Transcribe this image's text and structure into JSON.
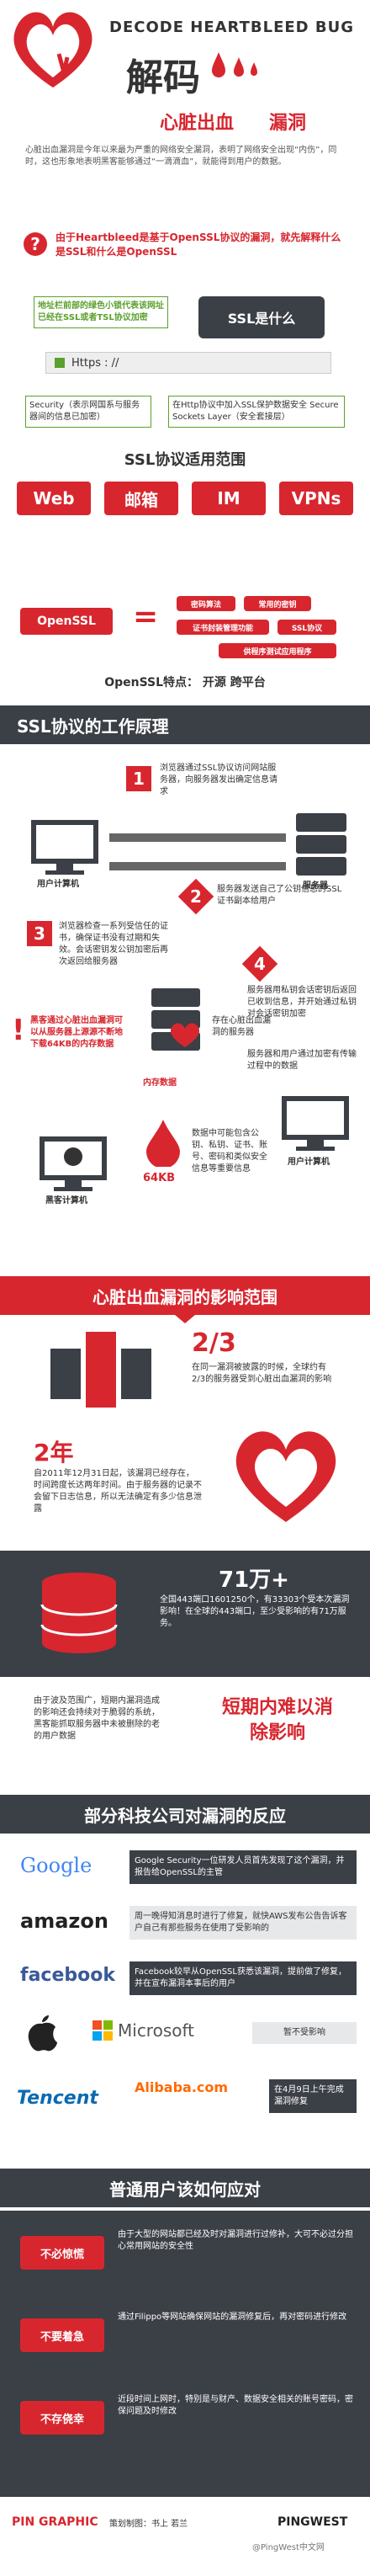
{
  "header": {
    "title_en": "DECODE HEARTBLEED BUG",
    "title_zh": "解码",
    "subtitle_a": "心脏出血",
    "subtitle_b": "漏洞",
    "intro": "心脏出血漏洞是今年以来最为严重的网络安全漏洞，表明了网络安全出现“内伤”，同时，这也形象地表明黑客能够通过“一滴滴血”，就能得到用户的数据。"
  },
  "q1": {
    "text": "由于Heartbleed是基于OpenSSL协议的漏洞，就先解释什么是SSL和什么是OpenSSL",
    "ssl_label": "SSL是什么",
    "browser_note": "地址栏前部的绿色小锁代表该网址已经在SSL或者TSL协议加密",
    "url": "Https : //",
    "security_label": "Security（表示网国系与服务器间的信息已加密）",
    "http_label": "在Http协议中加入SSL保护数据安全 Secure Sockets Layer（安全套接层）"
  },
  "scope": {
    "title": "SSL协议适用范围",
    "items": [
      "Web",
      "邮箱",
      "IM",
      "VPNs"
    ]
  },
  "openssl": {
    "label": "OpenSSL",
    "tags": [
      "密码算法",
      "常用的密钥",
      "证书封装管理功能",
      "SSL协议",
      "供程序测试应用程序"
    ],
    "feature": "OpenSSL特点：  开源    跨平台"
  },
  "work": {
    "title": "SSL协议的工作原理",
    "step1": "浏览器通过SSL协议访问网站服务器，向服务器发出确定信息请求",
    "step2": "服务器发送自己了公钥信息的SSL证书副本给用户",
    "step3": "浏览器检查一系列受信任的证书，确保证书没有过期和失效。会话密钥发公钥加密后再次返回给服务器",
    "step4": "服务器用私钥会话密钥后返回已收到信息，并开始通过私钥对会话密钥加密",
    "step5": "服务器和用户通过加密有传输过程中的数据",
    "user_pc": "用户计算机",
    "server": "服务器",
    "hacker_note": "黑客通过心脏出血漏洞可以从服务器上源源不断地下载64KB的内存数据",
    "bleed_server": "存在心脏出血漏洞的服务器",
    "mem": "内存数据",
    "size": "64KB",
    "leak_note": "数据中可能包含公钥、私钥、证书、账号、密码和类似安全信息等重要信息",
    "hacker_pc": "黑客计算机",
    "user_pc2": "用户计算机"
  },
  "impact": {
    "title": "心脏出血漏洞的影响范围",
    "ratio": "2/3",
    "ratio_text": "在同一漏洞被披露的时候，全球约有2/3的服务器受到心脏出血漏洞的影响",
    "years": "2年",
    "years_text": "自2011年12月31日起，该漏洞已经存在，时间跨度长达两年时间。由于服务器的记录不会留下日志信息，所以无法确定有多少信息泄露",
    "count": "71万+",
    "count_text": "全国443端口1601250个，有33303个受本次漏洞影响！在全球的443端口，至少受影响的有71万服务。",
    "short_title": "短期内难以消除影响",
    "short_text": "由于波及范围广，短期内漏洞造成的影响还会持续对于脆弱的系统，黑客能抓取服务器中未被删除的老的用户数据"
  },
  "companies": {
    "title": "部分科技公司对漏洞的反应",
    "rows": [
      {
        "name": "Google",
        "text": "Google Security一位研发人员首先发现了这个漏洞，并报告给OpenSSL的主管"
      },
      {
        "name": "amazon",
        "text": "周一晚得知消息时进行了修复，就快AWS发布公告告诉客户自己有那些服务在使用了受影响的"
      },
      {
        "name": "facebook",
        "text": "Facebook较早从OpenSSL获悉该漏洞，提前做了修复，并在宣布漏洞本事后的用户"
      },
      {
        "name": "Microsoft",
        "text": "暂不受影响"
      },
      {
        "name": "Tencent",
        "alt": "Alibaba.com",
        "text": "在4月9日上午完成漏洞修复"
      }
    ]
  },
  "advice": {
    "title": "普通用户该如何应对",
    "items": [
      {
        "label": "不必惊慌",
        "text": "由于大型的网站都已经及时对漏洞进行过修补，大可不必过分担心常用网站的安全性"
      },
      {
        "label": "不要着急",
        "text": "通过Filippo等网站确保网站的漏洞修复后，再对密码进行修改"
      },
      {
        "label": "不存侥幸",
        "text": "近段时间上网时，特别是与财产、数据安全相关的账号密码，密保问题及时修改"
      }
    ]
  },
  "footer": {
    "brand": "PIN GRAPHIC",
    "credit": "策划制图：书上 若兰",
    "right": "PINGWEST",
    "watermark": "@PingWest中文网"
  },
  "colors": {
    "accent": "#d8262f",
    "dark": "#3b3f46"
  }
}
